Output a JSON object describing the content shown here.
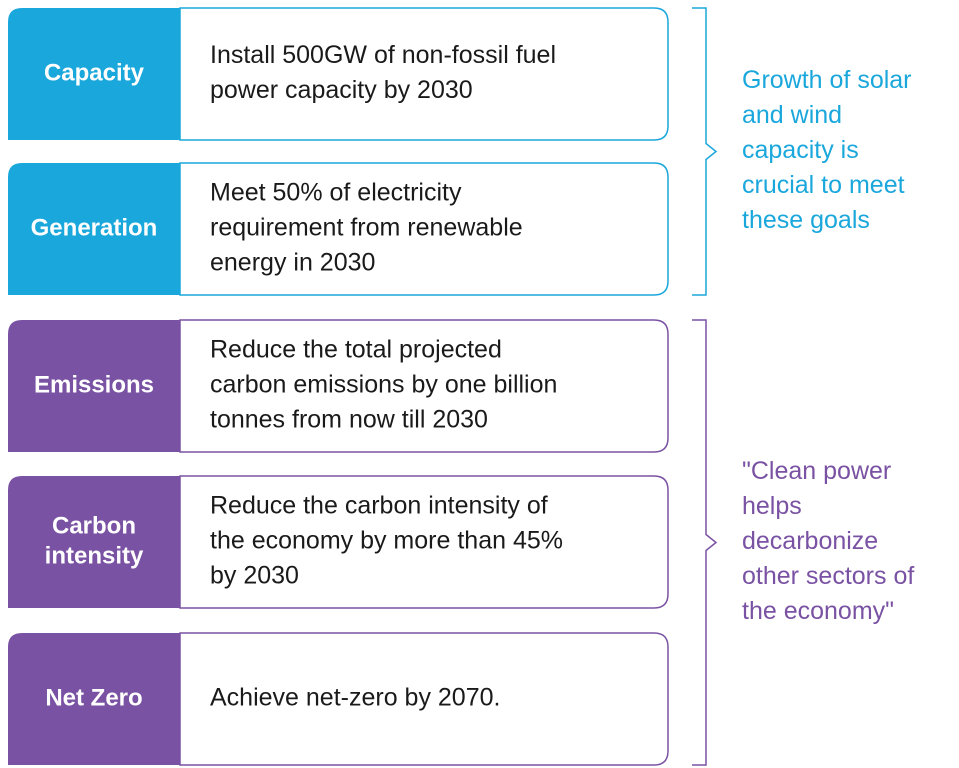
{
  "groups": [
    {
      "color": "#1aa7dc",
      "note": [
        "Growth of solar",
        "and wind",
        "capacity is",
        "crucial to meet",
        "these goals"
      ],
      "rows": [
        {
          "label": [
            "Capacity"
          ],
          "text": [
            "Install  500GW of non-fossil fuel",
            "power capacity by 2030"
          ]
        },
        {
          "label": [
            "Generation"
          ],
          "text": [
            "Meet 50% of electricity",
            "requirement from renewable",
            "energy in 2030"
          ]
        }
      ]
    },
    {
      "color": "#7a52a3",
      "note": [
        "\"Clean power",
        "helps",
        "decarbonize",
        "other sectors of",
        "the economy\""
      ],
      "rows": [
        {
          "label": [
            "Emissions"
          ],
          "text": [
            "Reduce the total projected",
            "carbon emissions by one billion",
            "tonnes from now till 2030"
          ]
        },
        {
          "label": [
            "Carbon",
            "intensity"
          ],
          "text": [
            "Reduce the carbon intensity of",
            "the economy by more than 45%",
            "by 2030"
          ]
        },
        {
          "label": [
            "Net Zero"
          ],
          "text": [
            "Achieve net-zero by 2070."
          ]
        }
      ]
    }
  ]
}
